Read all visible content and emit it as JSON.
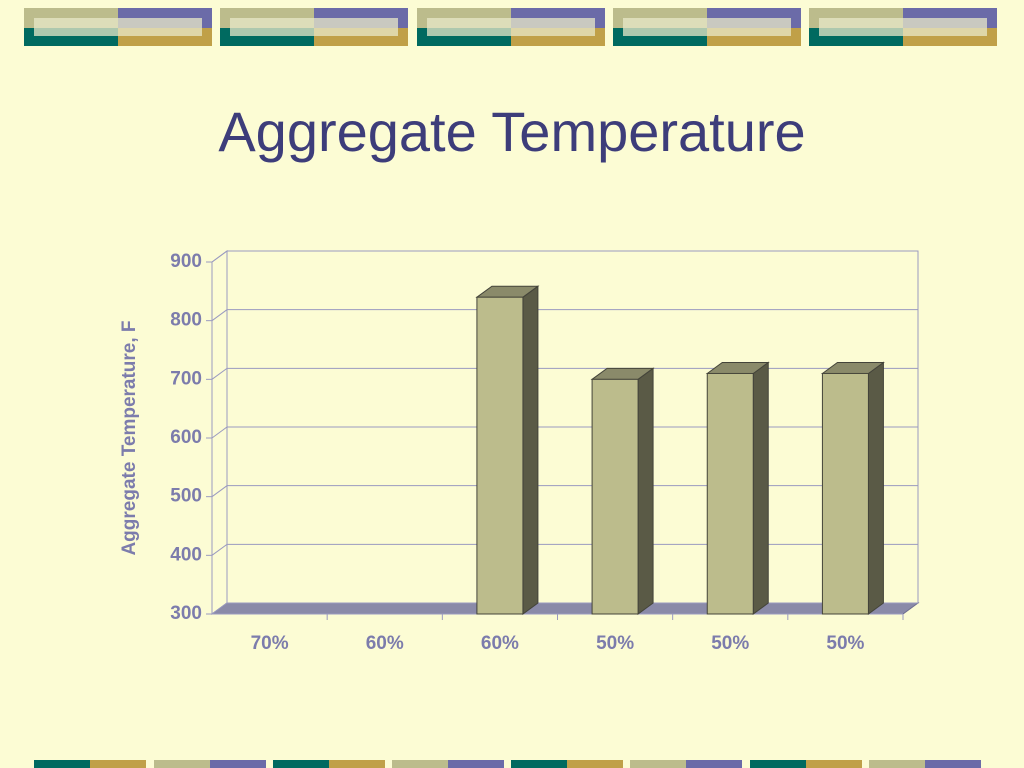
{
  "chart_data": {
    "type": "bar3d",
    "title": "Aggregate Temperature",
    "y_label": "Aggregate Temperature, F",
    "categories": [
      "70%",
      "60%",
      "60%",
      "50%",
      "50%",
      "50%"
    ],
    "values": [
      null,
      null,
      840,
      700,
      710,
      710
    ],
    "color": "#bcbc8c",
    "ylim": [
      300,
      900
    ],
    "yticks": [
      300,
      400,
      500,
      600,
      700,
      800,
      900
    ],
    "grid": true
  }
}
